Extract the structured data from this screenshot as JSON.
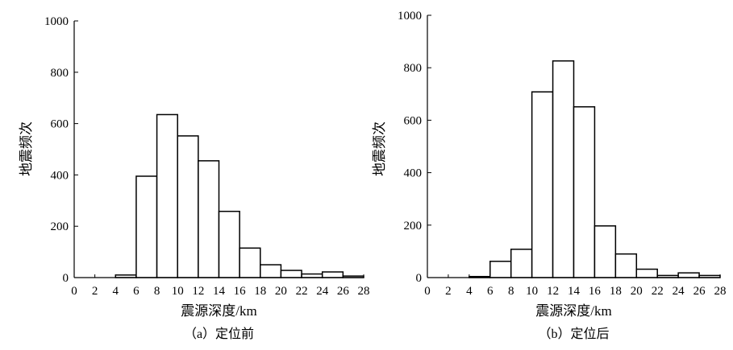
{
  "chart_data": [
    {
      "type": "bar",
      "caption": "（a）定位前",
      "xlabel": "震源深度/km",
      "ylabel": "地震频次",
      "xlim": [
        0,
        28
      ],
      "ylim": [
        0,
        1000
      ],
      "xticks": [
        "0",
        "2",
        "4",
        "6",
        "8",
        "10",
        "12",
        "14",
        "16",
        "18",
        "20",
        "22",
        "24",
        "26",
        "28"
      ],
      "yticks": [
        "0",
        "200",
        "400",
        "600",
        "800",
        "1000"
      ],
      "bin_width": 2,
      "bins": [
        {
          "x0": 4,
          "value": 10
        },
        {
          "x0": 6,
          "value": 395
        },
        {
          "x0": 8,
          "value": 635
        },
        {
          "x0": 10,
          "value": 552
        },
        {
          "x0": 12,
          "value": 455
        },
        {
          "x0": 14,
          "value": 258
        },
        {
          "x0": 16,
          "value": 115
        },
        {
          "x0": 18,
          "value": 50
        },
        {
          "x0": 20,
          "value": 28
        },
        {
          "x0": 22,
          "value": 14
        },
        {
          "x0": 24,
          "value": 22
        },
        {
          "x0": 26,
          "value": 6
        }
      ]
    },
    {
      "type": "bar",
      "caption": "（b）定位后",
      "xlabel": "震源深度/km",
      "ylabel": "地震频次",
      "xlim": [
        0,
        28
      ],
      "ylim": [
        0,
        1000
      ],
      "xticks": [
        "0",
        "2",
        "4",
        "6",
        "8",
        "10",
        "12",
        "14",
        "16",
        "18",
        "20",
        "22",
        "24",
        "26",
        "28"
      ],
      "yticks": [
        "0",
        "200",
        "400",
        "600",
        "800",
        "1000"
      ],
      "bin_width": 2,
      "bins": [
        {
          "x0": 4,
          "value": 4
        },
        {
          "x0": 6,
          "value": 62
        },
        {
          "x0": 8,
          "value": 108
        },
        {
          "x0": 10,
          "value": 708
        },
        {
          "x0": 12,
          "value": 826
        },
        {
          "x0": 14,
          "value": 651
        },
        {
          "x0": 16,
          "value": 197
        },
        {
          "x0": 18,
          "value": 90
        },
        {
          "x0": 20,
          "value": 32
        },
        {
          "x0": 22,
          "value": 8
        },
        {
          "x0": 24,
          "value": 18
        },
        {
          "x0": 26,
          "value": 8
        }
      ]
    }
  ]
}
